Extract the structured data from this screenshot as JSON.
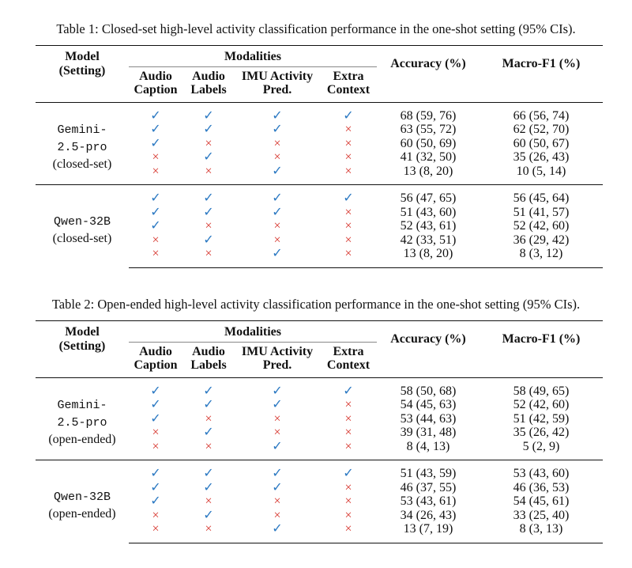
{
  "tables": [
    {
      "caption": "Table 1: Closed-set high-level activity classification performance in the one-shot setting (95% CIs).",
      "header": {
        "model": [
          "Model",
          "(Setting)"
        ],
        "modalities": "Modalities",
        "modality_columns": [
          [
            "Audio",
            "Caption"
          ],
          [
            "Audio",
            "Labels"
          ],
          [
            "IMU Activity",
            "Pred."
          ],
          [
            "Extra",
            "Context"
          ]
        ],
        "metrics": [
          "Accuracy (%)",
          "Macro-F1 (%)"
        ]
      },
      "groups": [
        {
          "model": [
            "Gemini-",
            "2.5-pro",
            "(closed-set)"
          ],
          "rows": [
            {
              "modalities": [
                "✓",
                "✓",
                "✓",
                "✓"
              ],
              "accuracy": "68 (59, 76)",
              "macro_f1": "66 (56, 74)"
            },
            {
              "modalities": [
                "✓",
                "✓",
                "✓",
                "×"
              ],
              "accuracy": "63 (55, 72)",
              "macro_f1": "62 (52, 70)"
            },
            {
              "modalities": [
                "✓",
                "×",
                "×",
                "×"
              ],
              "accuracy": "60 (50, 69)",
              "macro_f1": "60 (50, 67)"
            },
            {
              "modalities": [
                "×",
                "✓",
                "×",
                "×"
              ],
              "accuracy": "41 (32, 50)",
              "macro_f1": "35 (26, 43)"
            },
            {
              "modalities": [
                "×",
                "×",
                "✓",
                "×"
              ],
              "accuracy": "13 (8, 20)",
              "macro_f1": "10 (5, 14)"
            }
          ]
        },
        {
          "model": [
            "Qwen-32B",
            "(closed-set)"
          ],
          "rows": [
            {
              "modalities": [
                "✓",
                "✓",
                "✓",
                "✓"
              ],
              "accuracy": "56 (47, 65)",
              "macro_f1": "56 (45, 64)"
            },
            {
              "modalities": [
                "✓",
                "✓",
                "✓",
                "×"
              ],
              "accuracy": "51 (43, 60)",
              "macro_f1": "51 (41, 57)"
            },
            {
              "modalities": [
                "✓",
                "×",
                "×",
                "×"
              ],
              "accuracy": "52 (43, 61)",
              "macro_f1": "52 (42, 60)"
            },
            {
              "modalities": [
                "×",
                "✓",
                "×",
                "×"
              ],
              "accuracy": "42 (33, 51)",
              "macro_f1": "36 (29, 42)"
            },
            {
              "modalities": [
                "×",
                "×",
                "✓",
                "×"
              ],
              "accuracy": "13 (8, 20)",
              "macro_f1": "8 (3, 12)"
            }
          ]
        }
      ]
    },
    {
      "caption": "Table 2: Open-ended high-level activity classification performance in the one-shot setting (95% CIs).",
      "header": {
        "model": [
          "Model",
          "(Setting)"
        ],
        "modalities": "Modalities",
        "modality_columns": [
          [
            "Audio",
            "Caption"
          ],
          [
            "Audio",
            "Labels"
          ],
          [
            "IMU Activity",
            "Pred."
          ],
          [
            "Extra",
            "Context"
          ]
        ],
        "metrics": [
          "Accuracy (%)",
          "Macro-F1 (%)"
        ]
      },
      "groups": [
        {
          "model": [
            "Gemini-",
            "2.5-pro",
            "(open-ended)"
          ],
          "rows": [
            {
              "modalities": [
                "✓",
                "✓",
                "✓",
                "✓"
              ],
              "accuracy": "58 (50, 68)",
              "macro_f1": "58 (49, 65)"
            },
            {
              "modalities": [
                "✓",
                "✓",
                "✓",
                "×"
              ],
              "accuracy": "54 (45, 63)",
              "macro_f1": "52 (42, 60)"
            },
            {
              "modalities": [
                "✓",
                "×",
                "×",
                "×"
              ],
              "accuracy": "53 (44, 63)",
              "macro_f1": "51 (42, 59)"
            },
            {
              "modalities": [
                "×",
                "✓",
                "×",
                "×"
              ],
              "accuracy": "39 (31, 48)",
              "macro_f1": "35 (26, 42)"
            },
            {
              "modalities": [
                "×",
                "×",
                "✓",
                "×"
              ],
              "accuracy": "8 (4, 13)",
              "macro_f1": "5 (2, 9)"
            }
          ]
        },
        {
          "model": [
            "Qwen-32B",
            "(open-ended)"
          ],
          "rows": [
            {
              "modalities": [
                "✓",
                "✓",
                "✓",
                "✓"
              ],
              "accuracy": "51 (43, 59)",
              "macro_f1": "53 (43, 60)"
            },
            {
              "modalities": [
                "✓",
                "✓",
                "✓",
                "×"
              ],
              "accuracy": "46 (37, 55)",
              "macro_f1": "46 (36, 53)"
            },
            {
              "modalities": [
                "✓",
                "×",
                "×",
                "×"
              ],
              "accuracy": "53 (43, 61)",
              "macro_f1": "54 (45, 61)"
            },
            {
              "modalities": [
                "×",
                "✓",
                "×",
                "×"
              ],
              "accuracy": "34 (26, 43)",
              "macro_f1": "33 (25, 40)"
            },
            {
              "modalities": [
                "×",
                "×",
                "✓",
                "×"
              ],
              "accuracy": "13 (7, 19)",
              "macro_f1": "8 (3, 13)"
            }
          ]
        }
      ]
    }
  ]
}
